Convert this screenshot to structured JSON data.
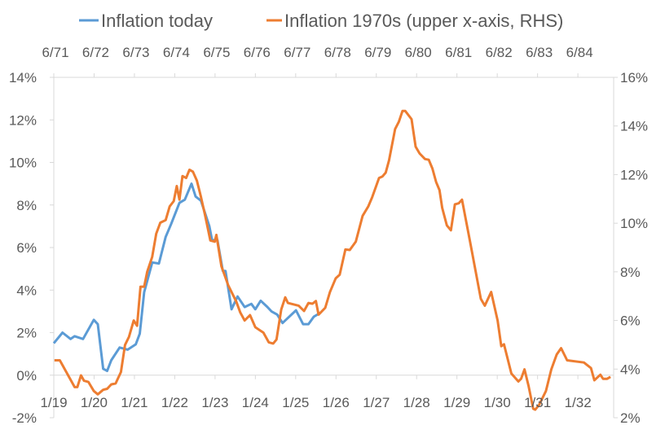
{
  "chart_data": {
    "type": "line",
    "title": "",
    "legend_position": "top",
    "x_unit": "months since 1/19 (bottom axis); upper axis offset to 6/71",
    "xlim": [
      0,
      166
    ],
    "bottom_ticks": {
      "labels": [
        "1/19",
        "1/20",
        "1/21",
        "1/22",
        "1/23",
        "1/24",
        "1/25",
        "1/26",
        "1/27",
        "1/28",
        "1/29",
        "1/30",
        "1/31",
        "1/32"
      ],
      "months": [
        0,
        12,
        24,
        36,
        48,
        60,
        72,
        84,
        96,
        108,
        120,
        132,
        144,
        156
      ]
    },
    "top_ticks": {
      "labels": [
        "6/71",
        "6/72",
        "6/73",
        "6/74",
        "6/75",
        "6/76",
        "6/77",
        "6/78",
        "6/79",
        "6/80",
        "6/81",
        "6/82",
        "6/83",
        "6/84"
      ],
      "months": [
        0,
        12,
        24,
        36,
        48,
        60,
        72,
        84,
        96,
        108,
        120,
        132,
        144,
        156
      ]
    },
    "left_axis": {
      "ylim": [
        -2,
        14
      ],
      "ticks": [
        -2,
        0,
        2,
        4,
        6,
        8,
        10,
        12,
        14
      ],
      "labels": [
        "-2%",
        "0%",
        "2%",
        "4%",
        "6%",
        "8%",
        "10%",
        "12%",
        "14%"
      ]
    },
    "right_axis": {
      "ylim": [
        2,
        16
      ],
      "ticks": [
        2,
        4,
        6,
        8,
        10,
        12,
        14,
        16
      ],
      "labels": [
        "2%",
        "4%",
        "6%",
        "8%",
        "10%",
        "12%",
        "14%",
        "16%"
      ]
    },
    "grid": false,
    "series": [
      {
        "name": "Inflation today",
        "axis": "left",
        "color": "#5B9BD5",
        "points": [
          [
            0,
            1.5
          ],
          [
            2.6,
            2.0
          ],
          [
            5.0,
            1.7
          ],
          [
            6.2,
            1.83
          ],
          [
            8.7,
            1.7
          ],
          [
            11.9,
            2.6
          ],
          [
            13.1,
            2.4
          ],
          [
            14.7,
            0.3
          ],
          [
            15.9,
            0.2
          ],
          [
            17.1,
            0.7
          ],
          [
            19.6,
            1.3
          ],
          [
            22.0,
            1.2
          ],
          [
            24.4,
            1.45
          ],
          [
            25.6,
            1.95
          ],
          [
            26.9,
            3.9
          ],
          [
            29.3,
            5.3
          ],
          [
            31.3,
            5.25
          ],
          [
            33.3,
            6.5
          ],
          [
            34.9,
            7.1
          ],
          [
            37.4,
            8.1
          ],
          [
            39.0,
            8.25
          ],
          [
            41.0,
            9.0
          ],
          [
            42.2,
            8.4
          ],
          [
            43.8,
            8.2
          ],
          [
            46.3,
            7.0
          ],
          [
            47.1,
            6.35
          ],
          [
            48.7,
            6.35
          ],
          [
            50.3,
            4.9
          ],
          [
            51.1,
            4.9
          ],
          [
            52.9,
            3.1
          ],
          [
            54.7,
            3.7
          ],
          [
            56.8,
            3.2
          ],
          [
            58.8,
            3.35
          ],
          [
            60.0,
            3.1
          ],
          [
            61.6,
            3.5
          ],
          [
            63.6,
            3.2
          ],
          [
            64.8,
            3.0
          ],
          [
            66.5,
            2.85
          ],
          [
            68.1,
            2.45
          ],
          [
            72.1,
            3.05
          ],
          [
            74.2,
            2.4
          ],
          [
            75.8,
            2.4
          ],
          [
            77.4,
            2.75
          ],
          [
            79.0,
            2.9
          ]
        ]
      },
      {
        "name": "Inflation 1970s (upper x-axis, RHS)",
        "axis": "right",
        "color": "#ED7D31",
        "points": [
          [
            0.2,
            4.36
          ],
          [
            1.8,
            4.36
          ],
          [
            6.2,
            3.26
          ],
          [
            7.0,
            3.26
          ],
          [
            8.1,
            3.74
          ],
          [
            9.0,
            3.52
          ],
          [
            10.3,
            3.47
          ],
          [
            11.9,
            3.1
          ],
          [
            13.1,
            2.96
          ],
          [
            14.7,
            3.15
          ],
          [
            15.9,
            3.19
          ],
          [
            17.1,
            3.37
          ],
          [
            18.4,
            3.41
          ],
          [
            20.0,
            3.88
          ],
          [
            21.2,
            4.99
          ],
          [
            22.4,
            5.33
          ],
          [
            23.8,
            6.0
          ],
          [
            24.8,
            5.78
          ],
          [
            25.8,
            7.39
          ],
          [
            26.9,
            7.39
          ],
          [
            27.8,
            8.0
          ],
          [
            29.3,
            8.62
          ],
          [
            30.5,
            9.57
          ],
          [
            31.7,
            10.02
          ],
          [
            33.3,
            10.13
          ],
          [
            34.5,
            10.69
          ],
          [
            35.7,
            10.91
          ],
          [
            36.6,
            11.53
          ],
          [
            37.4,
            10.97
          ],
          [
            38.3,
            11.94
          ],
          [
            39.4,
            11.86
          ],
          [
            40.4,
            12.2
          ],
          [
            41.4,
            12.12
          ],
          [
            42.6,
            11.75
          ],
          [
            43.8,
            11.08
          ],
          [
            45.0,
            10.35
          ],
          [
            46.6,
            9.29
          ],
          [
            47.9,
            9.24
          ],
          [
            48.4,
            9.52
          ],
          [
            49.9,
            8.23
          ],
          [
            51.9,
            7.45
          ],
          [
            54.3,
            6.78
          ],
          [
            55.5,
            6.33
          ],
          [
            56.8,
            6.0
          ],
          [
            58.4,
            6.22
          ],
          [
            60.0,
            5.72
          ],
          [
            61.2,
            5.61
          ],
          [
            62.4,
            5.5
          ],
          [
            64.0,
            5.1
          ],
          [
            65.3,
            5.05
          ],
          [
            66.3,
            5.22
          ],
          [
            67.7,
            6.45
          ],
          [
            68.9,
            6.95
          ],
          [
            69.7,
            6.72
          ],
          [
            72.9,
            6.61
          ],
          [
            74.5,
            6.39
          ],
          [
            75.8,
            6.72
          ],
          [
            77.0,
            6.69
          ],
          [
            78.0,
            6.8
          ],
          [
            78.8,
            6.24
          ],
          [
            80.8,
            6.52
          ],
          [
            82.2,
            7.17
          ],
          [
            83.9,
            7.73
          ],
          [
            85.1,
            7.88
          ],
          [
            86.8,
            8.92
          ],
          [
            88.1,
            8.9
          ],
          [
            89.9,
            9.24
          ],
          [
            91.9,
            10.3
          ],
          [
            93.6,
            10.69
          ],
          [
            94.8,
            11.08
          ],
          [
            96.8,
            11.86
          ],
          [
            97.8,
            11.92
          ],
          [
            98.8,
            12.08
          ],
          [
            99.8,
            12.59
          ],
          [
            101.6,
            13.87
          ],
          [
            102.7,
            14.17
          ],
          [
            103.8,
            14.62
          ],
          [
            104.6,
            14.62
          ],
          [
            106.5,
            14.28
          ],
          [
            107.7,
            13.15
          ],
          [
            108.9,
            12.87
          ],
          [
            110.5,
            12.64
          ],
          [
            111.6,
            12.61
          ],
          [
            112.7,
            12.25
          ],
          [
            113.8,
            11.7
          ],
          [
            114.8,
            11.36
          ],
          [
            115.6,
            10.63
          ],
          [
            117.0,
            9.91
          ],
          [
            118.2,
            9.71
          ],
          [
            119.4,
            10.78
          ],
          [
            120.5,
            10.82
          ],
          [
            121.5,
            10.97
          ],
          [
            123.9,
            9.24
          ],
          [
            127.1,
            6.89
          ],
          [
            128.3,
            6.61
          ],
          [
            130.2,
            7.17
          ],
          [
            132.1,
            6.0
          ],
          [
            133.2,
            4.94
          ],
          [
            134.0,
            5.02
          ],
          [
            136.2,
            3.82
          ],
          [
            138.3,
            3.49
          ],
          [
            139.1,
            3.6
          ],
          [
            140.1,
            3.99
          ],
          [
            141.3,
            3.32
          ],
          [
            142.7,
            2.37
          ],
          [
            143.3,
            2.33
          ],
          [
            144.5,
            2.54
          ],
          [
            146.5,
            3.1
          ],
          [
            148.1,
            3.99
          ],
          [
            149.7,
            4.6
          ],
          [
            151.0,
            4.86
          ],
          [
            152.8,
            4.36
          ],
          [
            157.8,
            4.27
          ],
          [
            159.9,
            4.04
          ],
          [
            160.9,
            3.54
          ],
          [
            162.7,
            3.77
          ],
          [
            163.5,
            3.6
          ],
          [
            164.7,
            3.6
          ],
          [
            165.7,
            3.68
          ]
        ]
      }
    ]
  }
}
